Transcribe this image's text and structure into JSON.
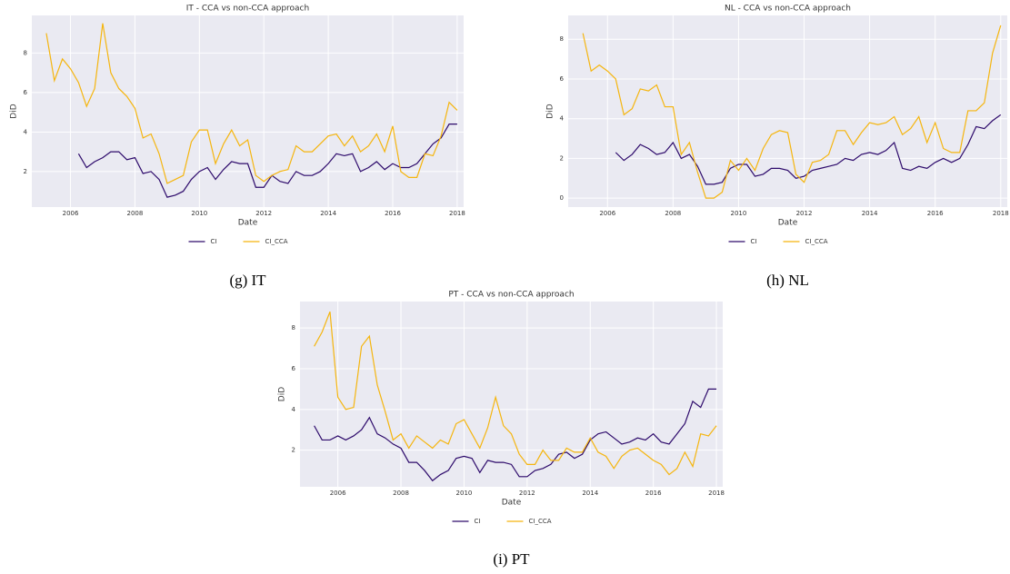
{
  "chart_data": [
    {
      "type": "line",
      "title": "IT - CCA vs non-CCA approach",
      "xlabel": "Date",
      "ylabel": "DiD",
      "caption": "(g) IT",
      "x": [
        2005.25,
        2005.5,
        2005.75,
        2006,
        2006.25,
        2006.5,
        2006.75,
        2007,
        2007.25,
        2007.5,
        2007.75,
        2008,
        2008.25,
        2008.5,
        2008.75,
        2009,
        2009.25,
        2009.5,
        2009.75,
        2010,
        2010.25,
        2010.5,
        2010.75,
        2011,
        2011.25,
        2011.5,
        2011.75,
        2012,
        2012.25,
        2012.5,
        2012.75,
        2013,
        2013.25,
        2013.5,
        2013.75,
        2014,
        2014.25,
        2014.5,
        2014.75,
        2015,
        2015.25,
        2015.5,
        2015.75,
        2016,
        2016.25,
        2016.5,
        2016.75,
        2017,
        2017.25,
        2017.5,
        2017.75,
        2018
      ],
      "series": [
        {
          "name": "CI",
          "color": "#2d0a6b",
          "values": [
            null,
            null,
            null,
            null,
            2.9,
            2.2,
            2.5,
            2.7,
            3.0,
            3.0,
            2.6,
            2.7,
            1.9,
            2.0,
            1.6,
            0.7,
            0.8,
            1.0,
            1.6,
            2.0,
            2.2,
            1.6,
            2.1,
            2.5,
            2.4,
            2.4,
            1.2,
            1.2,
            1.8,
            1.5,
            1.4,
            2.0,
            1.8,
            1.8,
            2.0,
            2.4,
            2.9,
            2.8,
            2.9,
            2.0,
            2.2,
            2.5,
            2.1,
            2.4,
            2.2,
            2.2,
            2.4,
            2.9,
            3.4,
            3.7,
            4.4,
            4.4
          ]
        },
        {
          "name": "CI_CCA",
          "color": "#f5b50e",
          "values": [
            9.0,
            6.6,
            7.7,
            7.2,
            6.5,
            5.3,
            6.2,
            9.5,
            7.0,
            6.2,
            5.8,
            5.2,
            3.7,
            3.9,
            2.9,
            1.4,
            1.6,
            1.8,
            3.5,
            4.1,
            4.1,
            2.4,
            3.4,
            4.1,
            3.3,
            3.6,
            1.8,
            1.5,
            1.8,
            2.0,
            2.1,
            3.3,
            3.0,
            3.0,
            3.4,
            3.8,
            3.9,
            3.3,
            3.8,
            3.0,
            3.3,
            3.9,
            3.0,
            4.3,
            2.0,
            1.7,
            1.7,
            2.9,
            2.8,
            3.8,
            5.5,
            5.1
          ]
        }
      ],
      "xlim": [
        2004.8,
        2018.2
      ],
      "xticks": [
        2006,
        2008,
        2010,
        2012,
        2014,
        2016,
        2018
      ],
      "ylim": [
        0.2,
        9.9
      ],
      "yticks": [
        2,
        4,
        6,
        8
      ],
      "grid": true,
      "legend": "below"
    },
    {
      "type": "line",
      "title": "NL - CCA vs non-CCA approach",
      "xlabel": "Date",
      "ylabel": "DiD",
      "caption": "(h) NL",
      "x": [
        2005.25,
        2005.5,
        2005.75,
        2006,
        2006.25,
        2006.5,
        2006.75,
        2007,
        2007.25,
        2007.5,
        2007.75,
        2008,
        2008.25,
        2008.5,
        2008.75,
        2009,
        2009.25,
        2009.5,
        2009.75,
        2010,
        2010.25,
        2010.5,
        2010.75,
        2011,
        2011.25,
        2011.5,
        2011.75,
        2012,
        2012.25,
        2012.5,
        2012.75,
        2013,
        2013.25,
        2013.5,
        2013.75,
        2014,
        2014.25,
        2014.5,
        2014.75,
        2015,
        2015.25,
        2015.5,
        2015.75,
        2016,
        2016.25,
        2016.5,
        2016.75,
        2017,
        2017.25,
        2017.5,
        2017.75,
        2018
      ],
      "series": [
        {
          "name": "CI",
          "color": "#2d0a6b",
          "values": [
            null,
            null,
            null,
            null,
            2.3,
            1.9,
            2.2,
            2.7,
            2.5,
            2.2,
            2.3,
            2.8,
            2.0,
            2.2,
            1.6,
            0.7,
            0.7,
            0.8,
            1.5,
            1.7,
            1.7,
            1.1,
            1.2,
            1.5,
            1.5,
            1.4,
            1.0,
            1.1,
            1.4,
            1.5,
            1.6,
            1.7,
            2.0,
            1.9,
            2.2,
            2.3,
            2.2,
            2.4,
            2.8,
            1.5,
            1.4,
            1.6,
            1.5,
            1.8,
            2.0,
            1.8,
            2.0,
            2.7,
            3.6,
            3.5,
            3.9,
            4.2
          ]
        },
        {
          "name": "CI_CCA",
          "color": "#f5b50e",
          "values": [
            8.3,
            6.4,
            6.7,
            6.4,
            6.0,
            4.2,
            4.5,
            5.5,
            5.4,
            5.7,
            4.6,
            4.6,
            2.2,
            2.8,
            1.3,
            0.0,
            0.0,
            0.3,
            1.9,
            1.4,
            2.0,
            1.4,
            2.5,
            3.2,
            3.4,
            3.3,
            1.2,
            0.8,
            1.8,
            1.9,
            2.2,
            3.4,
            3.4,
            2.7,
            3.3,
            3.8,
            3.7,
            3.8,
            4.1,
            3.2,
            3.5,
            4.1,
            2.8,
            3.8,
            2.5,
            2.3,
            2.3,
            4.4,
            4.4,
            4.8,
            7.3,
            8.7
          ]
        }
      ],
      "xlim": [
        2004.8,
        2018.2
      ],
      "xticks": [
        2006,
        2008,
        2010,
        2012,
        2014,
        2016,
        2018
      ],
      "ylim": [
        -0.45,
        9.2
      ],
      "yticks": [
        0,
        2,
        4,
        6,
        8
      ],
      "grid": true,
      "legend": "below"
    },
    {
      "type": "line",
      "title": "PT - CCA vs non-CCA approach",
      "xlabel": "Date",
      "ylabel": "DiD",
      "caption": "(i) PT",
      "x": [
        2005.25,
        2005.5,
        2005.75,
        2006,
        2006.25,
        2006.5,
        2006.75,
        2007,
        2007.25,
        2007.5,
        2007.75,
        2008,
        2008.25,
        2008.5,
        2008.75,
        2009,
        2009.25,
        2009.5,
        2009.75,
        2010,
        2010.25,
        2010.5,
        2010.75,
        2011,
        2011.25,
        2011.5,
        2011.75,
        2012,
        2012.25,
        2012.5,
        2012.75,
        2013,
        2013.25,
        2013.5,
        2013.75,
        2014,
        2014.25,
        2014.5,
        2014.75,
        2015,
        2015.25,
        2015.5,
        2015.75,
        2016,
        2016.25,
        2016.5,
        2016.75,
        2017,
        2017.25,
        2017.5,
        2017.75,
        2018
      ],
      "series": [
        {
          "name": "CI",
          "color": "#2d0a6b",
          "values": [
            3.2,
            2.5,
            2.5,
            2.7,
            2.5,
            2.7,
            3.0,
            3.6,
            2.8,
            2.6,
            2.3,
            2.1,
            1.4,
            1.4,
            1.0,
            0.5,
            0.8,
            1.0,
            1.6,
            1.7,
            1.6,
            0.9,
            1.5,
            1.4,
            1.4,
            1.3,
            0.7,
            0.7,
            1.0,
            1.1,
            1.3,
            1.8,
            1.9,
            1.6,
            1.8,
            2.5,
            2.8,
            2.9,
            2.6,
            2.3,
            2.4,
            2.6,
            2.5,
            2.8,
            2.4,
            2.3,
            2.8,
            3.3,
            4.4,
            4.1,
            5.0,
            5.0
          ]
        },
        {
          "name": "CI_CCA",
          "color": "#f5b50e",
          "values": [
            7.1,
            7.8,
            8.8,
            4.6,
            4.0,
            4.1,
            7.1,
            7.6,
            5.2,
            3.9,
            2.5,
            2.8,
            2.1,
            2.7,
            2.4,
            2.1,
            2.5,
            2.3,
            3.3,
            3.5,
            2.8,
            2.1,
            3.1,
            4.6,
            3.2,
            2.8,
            1.8,
            1.3,
            1.3,
            2.0,
            1.5,
            1.5,
            2.1,
            1.9,
            1.9,
            2.6,
            1.9,
            1.7,
            1.1,
            1.7,
            2.0,
            2.1,
            1.8,
            1.5,
            1.3,
            0.8,
            1.1,
            1.9,
            1.2,
            2.8,
            2.7,
            3.2
          ]
        }
      ],
      "xlim": [
        2004.8,
        2018.2
      ],
      "xticks": [
        2006,
        2008,
        2010,
        2012,
        2014,
        2016,
        2018
      ],
      "ylim": [
        0.2,
        9.3
      ],
      "yticks": [
        2,
        4,
        6,
        8
      ],
      "grid": true,
      "legend": "below"
    }
  ]
}
